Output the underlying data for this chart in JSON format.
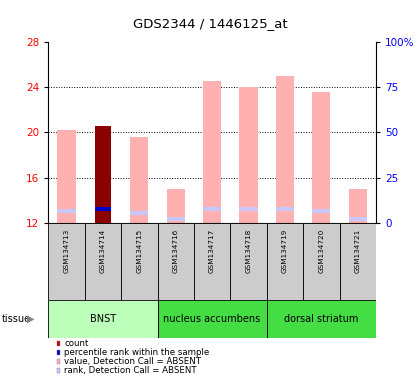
{
  "title": "GDS2344 / 1446125_at",
  "samples": [
    "GSM134713",
    "GSM134714",
    "GSM134715",
    "GSM134716",
    "GSM134717",
    "GSM134718",
    "GSM134719",
    "GSM134720",
    "GSM134721"
  ],
  "value_absent": [
    20.2,
    null,
    19.6,
    15.0,
    24.6,
    24.0,
    25.0,
    23.6,
    15.0
  ],
  "rank_absent": [
    13.0,
    null,
    12.9,
    12.3,
    13.2,
    13.2,
    13.2,
    13.0,
    12.3
  ],
  "count_value": [
    null,
    20.6,
    null,
    null,
    null,
    null,
    null,
    null,
    null
  ],
  "percentile_value": [
    null,
    13.2,
    null,
    null,
    null,
    null,
    null,
    null,
    null
  ],
  "ylim_left": [
    12,
    28
  ],
  "yticks_left": [
    12,
    16,
    20,
    24,
    28
  ],
  "ylim_right": [
    0,
    100
  ],
  "yticks_right": [
    0,
    25,
    50,
    75,
    100
  ],
  "tissue_labels": [
    "BNST",
    "nucleus accumbens",
    "dorsal striatum"
  ],
  "tissue_ranges": [
    [
      0,
      3
    ],
    [
      3,
      6
    ],
    [
      6,
      9
    ]
  ],
  "tissue_colors": [
    "#bbffbb",
    "#44dd44",
    "#44dd44"
  ],
  "bar_width": 0.5,
  "color_count": "#8b0000",
  "color_percentile": "#0000cc",
  "color_value_absent": "#ffb0b0",
  "color_rank_absent": "#c8c8ff",
  "bg_plot": "#ffffff",
  "bg_sample_box": "#cccccc",
  "legend_items": [
    {
      "color": "#cc0000",
      "label": "count"
    },
    {
      "color": "#0000cc",
      "label": "percentile rank within the sample"
    },
    {
      "color": "#ffb0b0",
      "label": "value, Detection Call = ABSENT"
    },
    {
      "color": "#c8c8ff",
      "label": "rank, Detection Call = ABSENT"
    }
  ]
}
